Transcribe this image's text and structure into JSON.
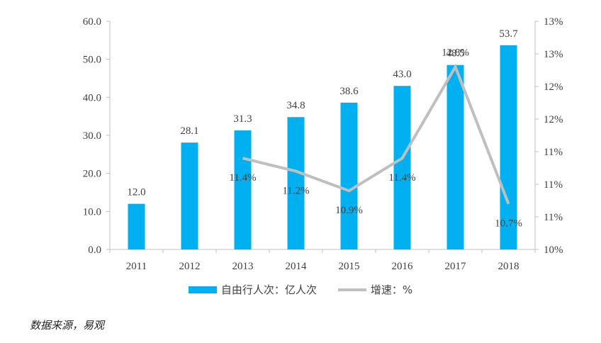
{
  "chart_data": {
    "type": "bar",
    "categories": [
      "2011",
      "2012",
      "2013",
      "2014",
      "2015",
      "2016",
      "2017",
      "2018"
    ],
    "series": [
      {
        "name": "自由行人次：亿人次",
        "type": "bar",
        "axis": "left",
        "values": [
          12.0,
          28.1,
          31.3,
          34.8,
          38.6,
          43.0,
          48.5,
          53.7
        ],
        "labels": [
          "12.0",
          "28.1",
          "31.3",
          "34.8",
          "38.6",
          "43.0",
          "48.5",
          "53.7"
        ],
        "color": "#00B0F0"
      },
      {
        "name": "增速：%",
        "type": "line",
        "axis": "right",
        "x": [
          "2013",
          "2014",
          "2015",
          "2016",
          "2017",
          "2018"
        ],
        "values": [
          11.4,
          11.2,
          10.9,
          11.4,
          12.8,
          10.7
        ],
        "labels": [
          "11.4%",
          "11.2%",
          "10.9%",
          "11.4%",
          "12.8%",
          "10.7%"
        ],
        "color": "#BFBFBF"
      }
    ],
    "y_left": {
      "range": [
        0,
        60
      ],
      "ticks": [
        "0.0",
        "10.0",
        "20.0",
        "30.0",
        "40.0",
        "50.0",
        "60.0"
      ]
    },
    "y_right": {
      "range": [
        10,
        13.5
      ],
      "ticks": [
        "10%",
        "11%",
        "11%",
        "11%",
        "12%",
        "12%",
        "13%",
        "13%"
      ]
    },
    "legend": {
      "position": "bottom",
      "bar_label": "自由行人次：亿人次",
      "line_label": "增速：%"
    },
    "grid": false
  },
  "source_note": "数据来源，易观"
}
